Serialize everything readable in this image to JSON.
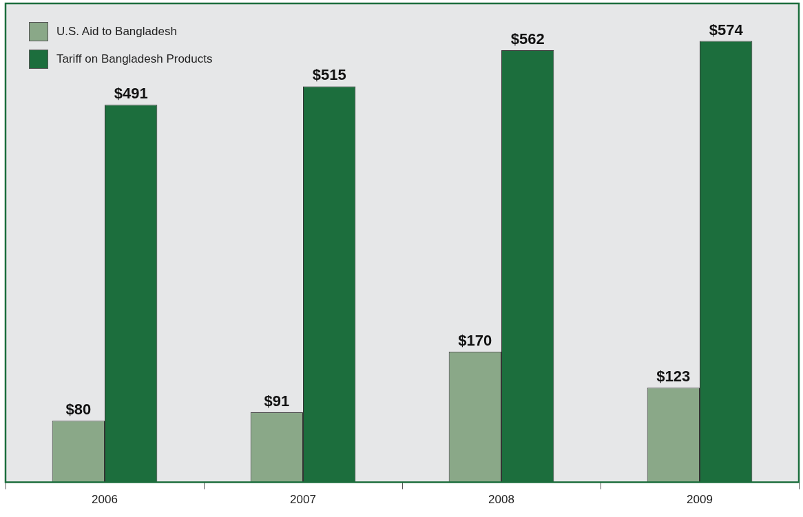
{
  "chart_data": {
    "type": "bar",
    "categories": [
      "2006",
      "2007",
      "2008",
      "2009"
    ],
    "series": [
      {
        "name": "U.S. Aid to Bangladesh",
        "color": "#8aa888",
        "values": [
          80,
          91,
          170,
          123
        ],
        "value_labels": [
          "$80",
          "$91",
          "$170",
          "$123"
        ]
      },
      {
        "name": "Tariff on Bangladesh Products",
        "color": "#1c6e3d",
        "values": [
          491,
          515,
          562,
          574
        ],
        "value_labels": [
          "$491",
          "$515",
          "$562",
          "$574"
        ]
      }
    ],
    "legend": "top left",
    "grid": false
  }
}
